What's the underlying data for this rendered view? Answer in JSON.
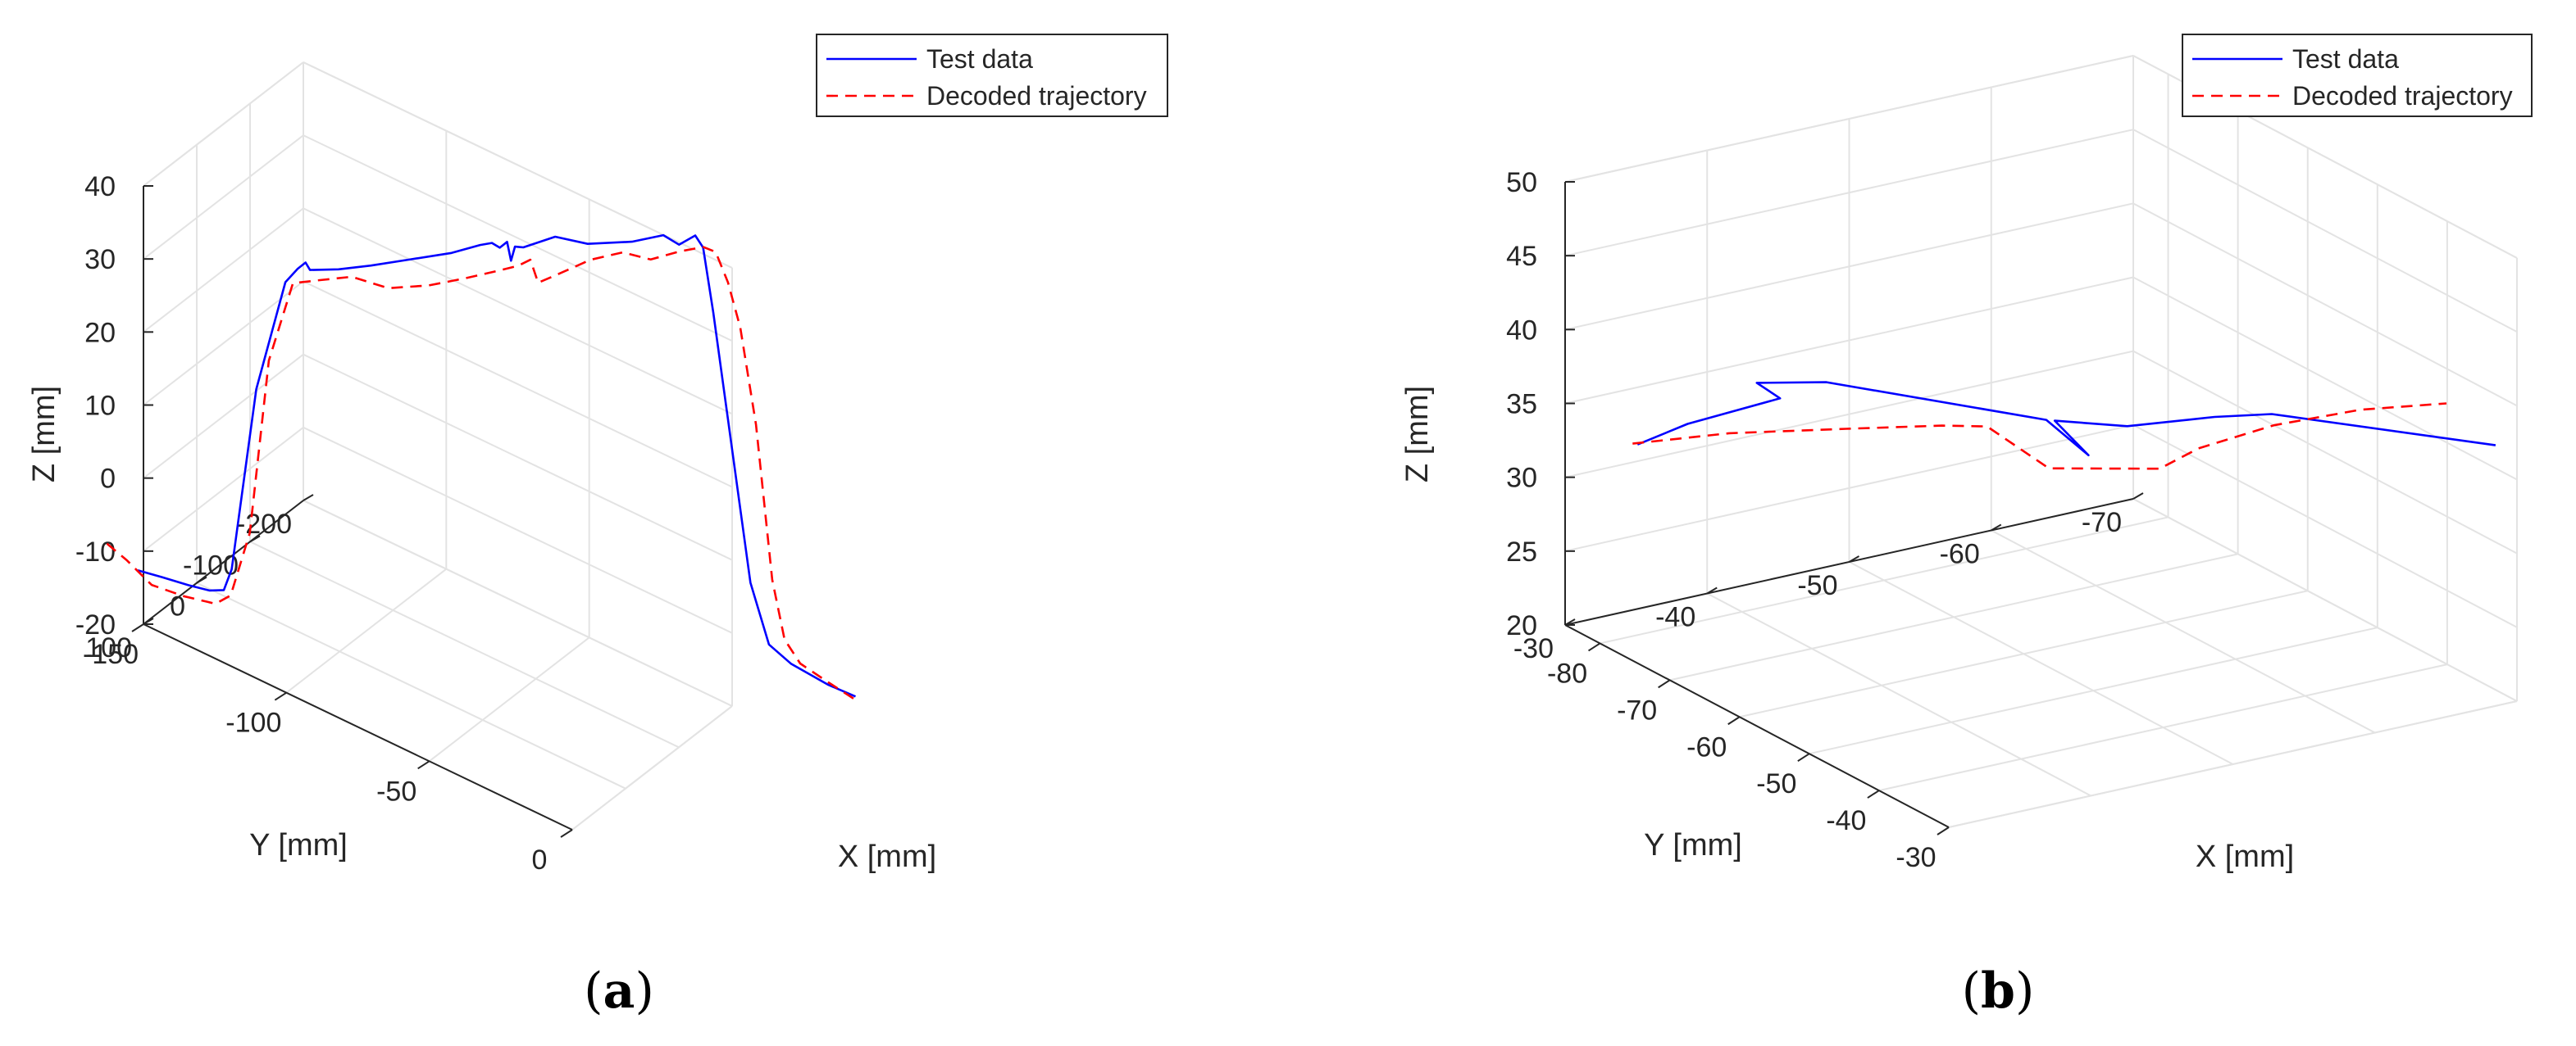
{
  "chart_data": [
    {
      "type": "line3d",
      "panel_label": "a",
      "caption_open": "(",
      "caption_close": ")",
      "xlabel": "X [mm]",
      "ylabel": "Y [mm]",
      "zlabel": "Z [mm]",
      "xlim": [
        -150,
        0
      ],
      "ylim": [
        -200,
        100
      ],
      "zlim": [
        -20,
        40
      ],
      "xticks": [
        -150,
        -100,
        -50,
        0
      ],
      "yticks": [
        100,
        0,
        -100,
        -200
      ],
      "zticks": [
        -20,
        -10,
        0,
        10,
        20,
        30,
        40
      ],
      "grid": true,
      "legend_position": "top-right",
      "legend": [
        "Test data",
        "Decoded trajectory"
      ],
      "series": [
        {
          "name": "Test data",
          "color": "#0000ff",
          "style": "solid",
          "points": [
            [
              -152,
              100,
              -13
            ],
            [
              -147,
              82,
              -14
            ],
            [
              -141,
              64,
              -15
            ],
            [
              -137,
              46,
              -16
            ],
            [
              -134,
              35,
              -16
            ],
            [
              -132,
              31,
              -13
            ],
            [
              -126,
              17,
              12
            ],
            [
              -119,
              0,
              27
            ],
            [
              -116,
              -7,
              29
            ],
            [
              -114,
              -11,
              30
            ],
            [
              -113,
              -14,
              29
            ],
            [
              -106,
              -30,
              29.5
            ],
            [
              -98,
              -48,
              30.5
            ],
            [
              -88,
              -70,
              32
            ],
            [
              -78,
              -92,
              33.5
            ],
            [
              -71,
              -108,
              35
            ],
            [
              -68,
              -114,
              35.5
            ],
            [
              -66,
              -118,
              35
            ],
            [
              -64,
              -121,
              36
            ],
            [
              -63,
              -123,
              33.5
            ],
            [
              -62,
              -125,
              35.5
            ],
            [
              -60,
              -130,
              35.5
            ],
            [
              -52,
              -147,
              37.5
            ],
            [
              -44,
              -165,
              37
            ],
            [
              -33,
              -189,
              38
            ],
            [
              -25,
              -205,
              39.5
            ],
            [
              -21,
              -213,
              38.5
            ],
            [
              -17,
              -222,
              40
            ],
            [
              -15,
              -226,
              38.5
            ],
            [
              -12,
              -229,
              30
            ],
            [
              -2,
              -245,
              -6
            ],
            [
              3,
              -253,
              -14
            ],
            [
              9,
              -262,
              -16
            ],
            [
              19,
              -279,
              -18
            ],
            [
              26,
              -292,
              -19
            ]
          ]
        },
        {
          "name": "Decoded trajectory",
          "color": "#ff0000",
          "style": "dashed",
          "points": [
            [
              -160,
              115,
              -10
            ],
            [
              -155,
              104,
              -12
            ],
            [
              -149,
              90,
              -15
            ],
            [
              -141,
              73,
              -16
            ],
            [
              -133,
              56,
              -16.5
            ],
            [
              -129,
              49,
              -15
            ],
            [
              -124,
              40,
              -6
            ],
            [
              -119,
              31,
              18
            ],
            [
              -113,
              18,
              29
            ],
            [
              -106,
              5,
              30
            ],
            [
              -98,
              -12,
              31
            ],
            [
              -89,
              -32,
              30
            ],
            [
              -79,
              -54,
              31
            ],
            [
              -70,
              -75,
              32.5
            ],
            [
              -62,
              -93,
              34
            ],
            [
              -57,
              -104,
              35
            ],
            [
              -54,
              -111,
              36
            ],
            [
              -52,
              -115,
              33
            ],
            [
              -47,
              -126,
              34.5
            ],
            [
              -39,
              -143,
              37
            ],
            [
              -31,
              -161,
              38.5
            ],
            [
              -24,
              -176,
              38
            ],
            [
              -17,
              -192,
              39.5
            ],
            [
              -11,
              -205,
              40.5
            ],
            [
              -8,
              -212,
              40
            ],
            [
              -5,
              -219,
              36
            ],
            [
              -2,
              -226,
              30
            ],
            [
              2,
              -234,
              17
            ],
            [
              6,
              -243,
              -4
            ],
            [
              9,
              -250,
              -12
            ],
            [
              13,
              -258,
              -15
            ],
            [
              20,
              -272,
              -17
            ],
            [
              27,
              -287,
              -19
            ]
          ]
        }
      ]
    },
    {
      "type": "line3d",
      "panel_label": "b",
      "caption_open": "(",
      "caption_close": ")",
      "xlabel": "X [mm]",
      "ylabel": "Y [mm]",
      "zlabel": "Z [mm]",
      "xlim": [
        -85,
        -30
      ],
      "ylim": [
        -70,
        -30
      ],
      "zlim": [
        20,
        50
      ],
      "xticks": [
        -80,
        -70,
        -60,
        -50,
        -40,
        -30
      ],
      "yticks": [
        -30,
        -40,
        -50,
        -60,
        -70
      ],
      "zticks": [
        20,
        25,
        30,
        35,
        40,
        45,
        50
      ],
      "grid": true,
      "legend_position": "top-right",
      "legend": [
        "Test data",
        "Decoded trajectory"
      ],
      "series": [
        {
          "name": "Test data",
          "color": "#0000ff",
          "style": "solid",
          "points": [
            [
              -84.8,
              -35,
              31.2
            ],
            [
              -82.1,
              -37.2,
              32.8
            ],
            [
              -77.4,
              -41.4,
              34.8
            ],
            [
              -79.1,
              -40.6,
              35.6
            ],
            [
              -74.0,
              -43.0,
              36.4
            ],
            [
              -60.0,
              -51.6,
              35.5
            ],
            [
              -56.8,
              -53.0,
              33.6
            ],
            [
              -59.2,
              -51.8,
              35.6
            ],
            [
              -54.5,
              -54.6,
              35.8
            ],
            [
              -48.9,
              -58.0,
              37.1
            ],
            [
              -45.6,
              -60.4,
              37.6
            ],
            [
              -29.0,
              -68.0,
              38.0
            ]
          ]
        },
        {
          "name": "Decoded trajectory",
          "color": "#ff0000",
          "style": "dashed",
          "points": [
            [
              -84.9,
              -34.7,
              31.3
            ],
            [
              -79.4,
              -38.8,
              32.5
            ],
            [
              -71.6,
              -43.2,
              33.8
            ],
            [
              -65.6,
              -47.0,
              34.7
            ],
            [
              -62.4,
              -48.6,
              35.1
            ],
            [
              -58.8,
              -51.2,
              32.6
            ],
            [
              -51.5,
              -55.4,
              33.5
            ],
            [
              -49.2,
              -57.0,
              35.1
            ],
            [
              -44.5,
              -60.0,
              37.2
            ],
            [
              -39.0,
              -63.4,
              38.9
            ],
            [
              -34.0,
              -67.0,
              39.8
            ]
          ]
        }
      ]
    }
  ]
}
